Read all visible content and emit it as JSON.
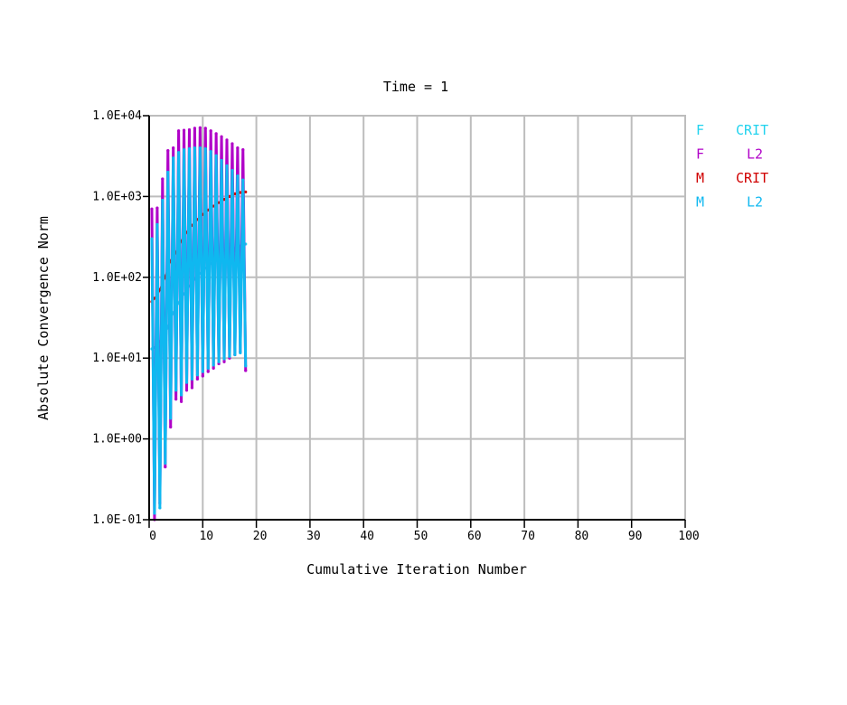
{
  "chart_data": {
    "type": "line",
    "title": "Time = 1",
    "xlabel": "Cumulative Iteration Number",
    "ylabel": "Absolute Convergence Norm",
    "xlim": [
      0,
      100
    ],
    "ylim": [
      0.1,
      10000
    ],
    "yscale": "log",
    "grid": true,
    "legend_position": "top-right",
    "x_ticks": [
      0,
      10,
      20,
      30,
      40,
      50,
      60,
      70,
      80,
      90,
      100
    ],
    "x_tick_labels": [
      "0",
      "10",
      "20",
      "30",
      "40",
      "50",
      "60",
      "70",
      "80",
      "90",
      "100"
    ],
    "y_ticks": [
      0.1,
      1,
      10,
      100,
      1000,
      10000
    ],
    "y_tick_labels": [
      "1.0E-01",
      "1.0E+00",
      "1.0E+01",
      "1.0E+02",
      "1.0E+03",
      "1.0E+04"
    ],
    "legend": [
      {
        "label_left": "F",
        "label_right": "CRIT",
        "color": "#22d3ee"
      },
      {
        "label_left": "F",
        "label_right": "L2",
        "color": "#b000c8"
      },
      {
        "label_left": "M",
        "label_right": "CRIT",
        "color": "#d00000"
      },
      {
        "label_left": "M",
        "label_right": "L2",
        "color": "#0fb8f0"
      }
    ],
    "series": [
      {
        "id": "f_crit",
        "color": "#22d3ee",
        "width": 2,
        "x": [
          0.5,
          1.0,
          1.5,
          2.0,
          2.5,
          3.0,
          3.5,
          4.0,
          4.5,
          5.0,
          5.5,
          6.0,
          6.5,
          7.0,
          7.5,
          8.0,
          8.5,
          9.0,
          9.5,
          10.0,
          10.5,
          11.0,
          11.5,
          12.0,
          12.5,
          13.0,
          13.5,
          14.0,
          14.5,
          15.0,
          15.5,
          16.0,
          16.5,
          17.0,
          17.5,
          18.0
        ],
        "y": [
          13,
          13.5,
          14.5,
          16,
          18,
          20,
          24,
          30,
          36,
          42,
          48,
          56,
          62,
          70,
          78,
          86,
          95,
          104,
          112,
          120,
          130,
          140,
          148,
          156,
          164,
          172,
          182,
          192,
          200,
          210,
          220,
          228,
          236,
          244,
          252,
          258
        ]
      },
      {
        "id": "f_l2",
        "color": "#b000c8",
        "width": 3,
        "x": [
          0.5,
          1.0,
          1.5,
          2.0,
          2.5,
          3.0,
          3.5,
          4.0,
          4.5,
          5.0,
          5.5,
          6.0,
          6.5,
          7.0,
          7.5,
          8.0,
          8.5,
          9.0,
          9.5,
          10.0,
          10.5,
          11.0,
          11.5,
          12.0,
          12.5,
          13.0,
          13.5,
          14.0,
          14.5,
          15.0,
          15.5,
          16.0,
          16.5,
          17.0,
          17.5,
          18.0
        ],
        "y": [
          700,
          0.1,
          720,
          0.16,
          1650,
          0.45,
          3700,
          1.4,
          4000,
          3.1,
          6500,
          2.9,
          6600,
          4.0,
          6700,
          4.3,
          7000,
          5.5,
          7100,
          6.0,
          7000,
          6.8,
          6500,
          7.5,
          6000,
          8.5,
          5500,
          9.0,
          5000,
          10.0,
          4500,
          11.0,
          4000,
          12.0,
          3800,
          7.0
        ]
      },
      {
        "id": "m_crit",
        "color": "#d00000",
        "width": 2,
        "x": [
          0.5,
          1.0,
          1.5,
          2.0,
          2.5,
          3.0,
          3.5,
          4.0,
          4.5,
          5.0,
          5.5,
          6.0,
          6.5,
          7.0,
          7.5,
          8.0,
          8.5,
          9.0,
          9.5,
          10.0,
          10.5,
          11.0,
          11.5,
          12.0,
          12.5,
          13.0,
          13.5,
          14.0,
          14.5,
          15.0,
          15.5,
          16.0,
          16.5,
          17.0,
          17.5,
          18.0
        ],
        "y": [
          50,
          55,
          60,
          70,
          85,
          100,
          130,
          160,
          180,
          200,
          240,
          280,
          320,
          360,
          400,
          440,
          480,
          520,
          560,
          600,
          640,
          680,
          720,
          760,
          800,
          840,
          880,
          920,
          960,
          1000,
          1040,
          1080,
          1100,
          1120,
          1130,
          1140
        ]
      },
      {
        "id": "m_l2",
        "color": "#0fb8f0",
        "width": 3,
        "x": [
          0.5,
          1.0,
          1.5,
          2.0,
          2.5,
          3.0,
          3.5,
          4.0,
          4.5,
          5.0,
          5.5,
          6.0,
          6.5,
          7.0,
          7.5,
          8.0,
          8.5,
          9.0,
          9.5,
          10.0,
          10.5,
          11.0,
          11.5,
          12.0,
          12.5,
          13.0,
          13.5,
          14.0,
          14.5,
          15.0,
          15.5,
          16.0,
          16.5,
          17.0,
          17.5,
          18.0
        ],
        "y": [
          300,
          0.12,
          450,
          0.14,
          900,
          0.5,
          2000,
          1.8,
          3000,
          4.0,
          3500,
          3.5,
          3800,
          5.0,
          3900,
          5.5,
          4000,
          6.2,
          4000,
          6.8,
          3900,
          7.5,
          3600,
          8.2,
          3200,
          9.0,
          2800,
          9.8,
          2400,
          10.5,
          2100,
          11.0,
          1800,
          11.6,
          1600,
          8.0
        ]
      }
    ]
  }
}
